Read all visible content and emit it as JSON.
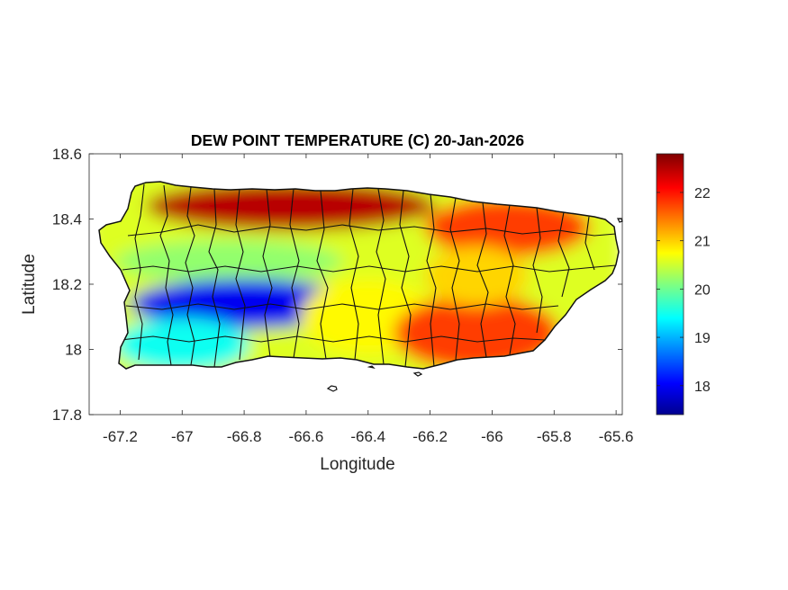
{
  "title": "DEW POINT TEMPERATURE (C) 20-Jan-2026",
  "xlabel": "Longitude",
  "ylabel": "Latitude",
  "x_ticks": [
    "-67.2",
    "-67",
    "-66.8",
    "-66.6",
    "-66.4",
    "-66.2",
    "-66",
    "-65.8",
    "-65.6"
  ],
  "x_tick_values": [
    -67.2,
    -67.0,
    -66.8,
    -66.6,
    -66.4,
    -66.2,
    -66.0,
    -65.8,
    -65.6
  ],
  "y_ticks": [
    "18.6",
    "18.4",
    "18.2",
    "18",
    "17.8"
  ],
  "y_tick_values": [
    18.6,
    18.4,
    18.2,
    18.0,
    17.8
  ],
  "xlim": [
    -67.3,
    -65.58
  ],
  "ylim": [
    17.8,
    18.6
  ],
  "colorbar": {
    "colormap": "jet",
    "range": [
      17.4,
      22.8
    ],
    "ticks": [
      "22",
      "21",
      "20",
      "19",
      "18"
    ],
    "tick_values": [
      22,
      21,
      20,
      19,
      18
    ]
  },
  "chart_data": {
    "type": "heatmap",
    "title": "DEW POINT TEMPERATURE (C) 20-Jan-2026",
    "xlabel": "Longitude",
    "ylabel": "Latitude",
    "xlim": [
      -67.3,
      -65.58
    ],
    "ylim": [
      17.8,
      18.6
    ],
    "color_range": [
      17.4,
      22.8
    ],
    "grid": false,
    "legend": "colorbar-right",
    "region": "Puerto Rico",
    "zones": [
      {
        "lon_range": [
          -67.1,
          -66.2
        ],
        "lat_range": [
          18.38,
          18.5
        ],
        "value": 22.5
      },
      {
        "lon_range": [
          -66.2,
          -65.7
        ],
        "lat_range": [
          18.3,
          18.45
        ],
        "value": 21.8
      },
      {
        "lon_range": [
          -67.2,
          -66.5
        ],
        "lat_range": [
          18.22,
          18.32
        ],
        "value": 20.2
      },
      {
        "lon_range": [
          -67.15,
          -66.45
        ],
        "lat_range": [
          18.08,
          18.2
        ],
        "value": 18.0
      },
      {
        "lon_range": [
          -67.2,
          -66.8
        ],
        "lat_range": [
          17.95,
          18.08
        ],
        "value": 19.5
      },
      {
        "lon_range": [
          -66.6,
          -66.2
        ],
        "lat_range": [
          18.0,
          18.2
        ],
        "value": 20.8
      },
      {
        "lon_range": [
          -66.3,
          -65.8
        ],
        "lat_range": [
          17.95,
          18.15
        ],
        "value": 21.8
      },
      {
        "lon_range": [
          -66.2,
          -65.9
        ],
        "lat_range": [
          18.15,
          18.3
        ],
        "value": 21.0
      }
    ]
  }
}
